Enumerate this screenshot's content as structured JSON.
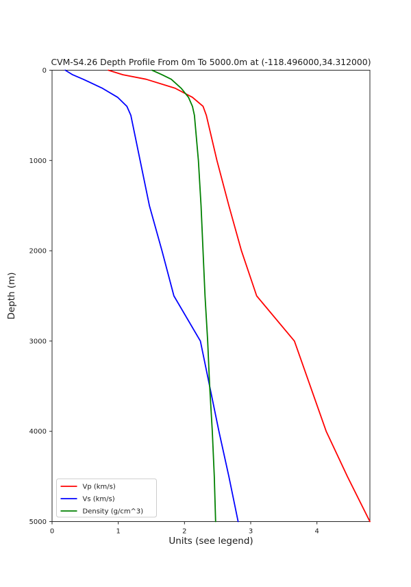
{
  "figure": {
    "title": "CVM-S4.26 Depth Profile From 0m To 5000.0m at (-118.496000,34.312000)",
    "xlabel": "Units (see legend)",
    "ylabel": "Depth (m)"
  },
  "chart_data": {
    "type": "line",
    "title": "CVM-S4.26 Depth Profile From 0m To 5000.0m at (-118.496000,34.312000)",
    "xlabel": "Units (see legend)",
    "ylabel": "Depth (m)",
    "orientation": "vertical depth profile: x = property value, y = depth increasing downward",
    "xlim": [
      0,
      4.8
    ],
    "ylim": [
      0,
      5000
    ],
    "xticks": [
      0,
      1,
      2,
      3,
      4
    ],
    "yticks": [
      0,
      1000,
      2000,
      3000,
      4000,
      5000
    ],
    "grid": false,
    "legend_position": "lower left",
    "axis_color": "#262626",
    "depth_m": [
      0,
      50,
      100,
      200,
      300,
      400,
      500,
      1000,
      1500,
      2000,
      2500,
      3000,
      3500,
      4000,
      4500,
      5000
    ],
    "series": [
      {
        "name": "Vp (km/s)",
        "color": "#ff0000",
        "values": [
          0.85,
          1.07,
          1.42,
          1.86,
          2.12,
          2.28,
          2.33,
          2.49,
          2.67,
          2.86,
          3.09,
          3.66,
          3.9,
          4.14,
          4.46,
          4.8
        ]
      },
      {
        "name": "Vs (km/s)",
        "color": "#0000ff",
        "values": [
          0.2,
          0.31,
          0.47,
          0.76,
          0.99,
          1.13,
          1.19,
          1.33,
          1.47,
          1.66,
          1.84,
          2.24,
          2.38,
          2.52,
          2.67,
          2.81
        ]
      },
      {
        "name": "Density (g/cm^3)",
        "color": "#008000",
        "values": [
          1.51,
          1.66,
          1.8,
          1.95,
          2.06,
          2.12,
          2.15,
          2.21,
          2.25,
          2.28,
          2.31,
          2.35,
          2.38,
          2.42,
          2.45,
          2.47
        ]
      }
    ]
  }
}
